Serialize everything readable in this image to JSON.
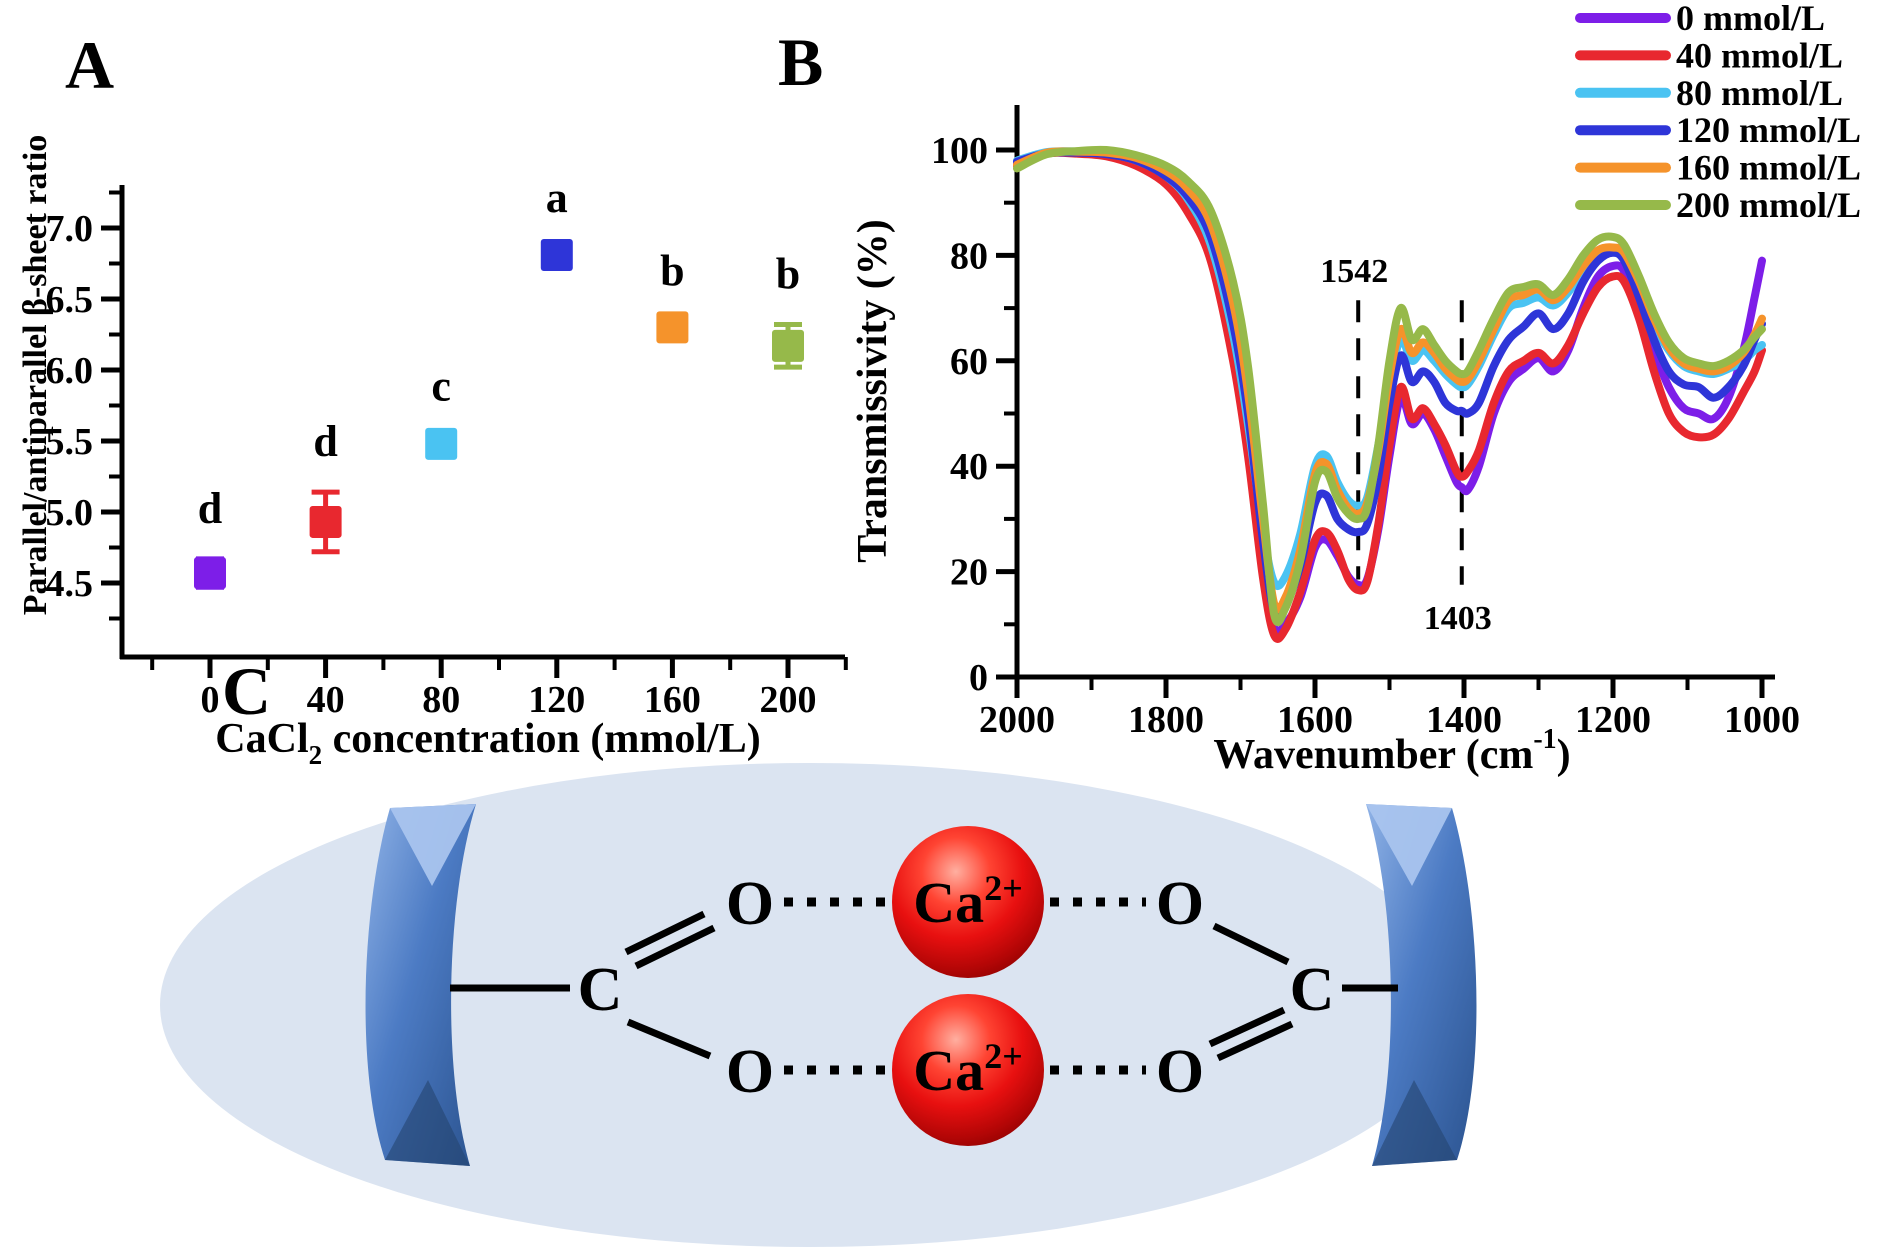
{
  "figure": {
    "panel_a_label": "A",
    "panel_b_label": "B",
    "panel_c_label": "C"
  },
  "chart_data": [
    {
      "id": "panel_a",
      "type": "scatter",
      "xlabel_prefix": "CaCl",
      "xlabel_sub": "2",
      "xlabel_suffix": " concentration (mmol/L)",
      "ylabel": "Parallel/antiparallel β-sheet ratio",
      "categories": [
        0,
        40,
        80,
        120,
        160,
        200
      ],
      "values": [
        4.57,
        4.93,
        5.48,
        6.81,
        6.3,
        6.17
      ],
      "errors": [
        0.1,
        0.21,
        0.05,
        0.05,
        0.04,
        0.15
      ],
      "sig_letters": [
        "d",
        "d",
        "c",
        "a",
        "b",
        "b"
      ],
      "colors": [
        "#7D1EE8",
        "#E8282F",
        "#4AC3F2",
        "#2E35D8",
        "#F5932B",
        "#96B94A"
      ],
      "x_ticks": [
        "0",
        "40",
        "80",
        "120",
        "160",
        "200"
      ],
      "x_tick_values": [
        0,
        40,
        80,
        120,
        160,
        200
      ],
      "y_ticks": [
        "4.5",
        "5.0",
        "5.5",
        "6.0",
        "6.5",
        "7.0"
      ],
      "y_tick_values": [
        4.5,
        5.0,
        5.5,
        6.0,
        6.5,
        7.0
      ],
      "xlim": [
        -30,
        220
      ],
      "ylim": [
        4.0,
        7.3
      ],
      "grid": false,
      "legend_position": "none"
    },
    {
      "id": "panel_b",
      "type": "line",
      "xlabel_prefix": "Wavenumber (cm",
      "xlabel_sup": "-1",
      "xlabel_suffix": ")",
      "ylabel": "Transmissivity (%)",
      "x_ticks": [
        "2000",
        "1800",
        "1600",
        "1400",
        "1200",
        "1000"
      ],
      "x_tick_values": [
        2000,
        1800,
        1600,
        1400,
        1200,
        1000
      ],
      "y_ticks": [
        "0",
        "20",
        "40",
        "60",
        "80",
        "100"
      ],
      "y_tick_values": [
        0,
        20,
        40,
        60,
        80,
        100
      ],
      "xlim": [
        2000,
        1000
      ],
      "ylim": [
        0,
        108
      ],
      "grid": false,
      "legend_position": "top-right",
      "annotations": [
        {
          "label": "1542",
          "x": 1542,
          "label_side": "top"
        },
        {
          "label": "1403",
          "x": 1403,
          "label_side": "bottom"
        }
      ],
      "x": [
        2000,
        1960,
        1920,
        1880,
        1840,
        1800,
        1770,
        1740,
        1710,
        1690,
        1670,
        1655,
        1640,
        1620,
        1600,
        1585,
        1570,
        1555,
        1542,
        1530,
        1515,
        1500,
        1485,
        1470,
        1455,
        1440,
        1425,
        1410,
        1403,
        1395,
        1380,
        1360,
        1340,
        1320,
        1300,
        1280,
        1260,
        1240,
        1220,
        1200,
        1185,
        1165,
        1145,
        1125,
        1105,
        1085,
        1065,
        1045,
        1025,
        1010,
        1000
      ],
      "series": [
        {
          "name": "0 mmol/L",
          "color": "#7D1EE8",
          "values": [
            97.5,
            99.5,
            99.5,
            99.0,
            97.5,
            94.0,
            89.0,
            80.0,
            62.0,
            45.0,
            22.0,
            9.5,
            10.0,
            15.0,
            24.5,
            26.0,
            23.0,
            19.0,
            17.5,
            18.5,
            28.0,
            42.0,
            53.0,
            48.0,
            50.0,
            47.0,
            42.0,
            37.0,
            36.0,
            35.5,
            40.0,
            50.0,
            56.0,
            58.5,
            60.5,
            58.0,
            62.0,
            70.0,
            76.0,
            78.0,
            77.0,
            70.0,
            62.0,
            55.0,
            51.0,
            50.0,
            49.0,
            53.0,
            62.0,
            72.0,
            79.0
          ]
        },
        {
          "name": "40 mmol/L",
          "color": "#E8282F",
          "values": [
            97.0,
            99.3,
            99.3,
            98.8,
            97.0,
            93.5,
            88.0,
            79.0,
            60.0,
            42.0,
            19.0,
            8.0,
            9.0,
            16.0,
            26.0,
            27.5,
            24.0,
            18.5,
            16.5,
            18.0,
            29.0,
            44.0,
            55.0,
            49.0,
            51.0,
            48.0,
            44.0,
            39.0,
            38.0,
            39.0,
            43.0,
            52.0,
            58.0,
            60.0,
            61.5,
            59.5,
            63.0,
            69.0,
            74.0,
            76.0,
            75.0,
            68.0,
            58.0,
            50.0,
            46.5,
            45.5,
            46.0,
            49.0,
            54.0,
            58.0,
            62.0
          ]
        },
        {
          "name": "80 mmol/L",
          "color": "#4AC3F2",
          "values": [
            98.0,
            99.6,
            99.7,
            99.3,
            98.0,
            95.0,
            90.5,
            82.0,
            65.0,
            48.0,
            28.0,
            18.0,
            19.0,
            27.0,
            40.0,
            42.0,
            37.0,
            33.5,
            32.5,
            34.0,
            44.0,
            56.0,
            64.0,
            60.0,
            62.0,
            60.0,
            57.5,
            55.5,
            55.0,
            55.5,
            59.0,
            65.0,
            70.0,
            71.0,
            72.0,
            70.5,
            73.0,
            77.0,
            80.0,
            81.0,
            80.0,
            74.0,
            67.0,
            62.0,
            59.0,
            58.0,
            57.5,
            58.5,
            60.0,
            62.0,
            63.0
          ]
        },
        {
          "name": "120 mmol/L",
          "color": "#2E35D8",
          "values": [
            97.8,
            99.4,
            99.5,
            99.2,
            98.0,
            95.0,
            91.0,
            83.5,
            67.0,
            50.0,
            26.0,
            12.5,
            13.5,
            21.0,
            33.0,
            34.5,
            30.0,
            28.0,
            27.5,
            29.0,
            38.0,
            52.0,
            61.0,
            56.0,
            58.0,
            56.0,
            52.0,
            50.5,
            50.5,
            50.0,
            52.0,
            59.0,
            64.0,
            66.5,
            69.0,
            66.0,
            69.0,
            75.0,
            79.0,
            80.5,
            79.0,
            72.0,
            64.0,
            58.0,
            55.5,
            55.0,
            53.0,
            55.0,
            59.0,
            64.0,
            67.0
          ]
        },
        {
          "name": "160 mmol/L",
          "color": "#F5932B",
          "values": [
            97.2,
            99.5,
            99.7,
            99.5,
            98.5,
            96.0,
            92.5,
            86.0,
            71.0,
            54.0,
            30.0,
            14.0,
            15.0,
            24.0,
            38.5,
            40.5,
            35.5,
            32.0,
            31.0,
            33.0,
            43.0,
            57.0,
            66.0,
            61.5,
            63.5,
            61.5,
            58.5,
            56.5,
            56.0,
            56.5,
            60.0,
            66.0,
            71.5,
            72.5,
            73.5,
            71.5,
            74.0,
            78.0,
            81.0,
            81.5,
            80.5,
            75.0,
            68.0,
            62.5,
            59.5,
            58.5,
            58.0,
            59.0,
            61.5,
            65.0,
            68.0
          ]
        },
        {
          "name": "200 mmol/L",
          "color": "#96B94A",
          "values": [
            96.5,
            99.2,
            99.8,
            100.0,
            99.0,
            97.0,
            94.0,
            88.5,
            75.0,
            59.0,
            33.0,
            12.0,
            13.0,
            22.0,
            37.0,
            39.0,
            34.0,
            31.0,
            30.0,
            32.0,
            44.0,
            60.0,
            70.0,
            64.0,
            66.0,
            63.0,
            60.0,
            58.0,
            57.5,
            58.0,
            62.0,
            68.0,
            73.0,
            74.0,
            74.5,
            72.5,
            75.5,
            80.0,
            83.0,
            83.5,
            82.0,
            76.0,
            69.0,
            63.5,
            60.5,
            59.5,
            59.0,
            60.0,
            62.0,
            64.5,
            66.0
          ]
        }
      ]
    }
  ],
  "molecule": {
    "cation_base": "Ca",
    "cation_charge": "2+",
    "oxygen": "O",
    "carbon": "C",
    "sphere_color": "#E81010",
    "strand_color": "#4C7BC4",
    "background_color": "#DBE4F1"
  }
}
